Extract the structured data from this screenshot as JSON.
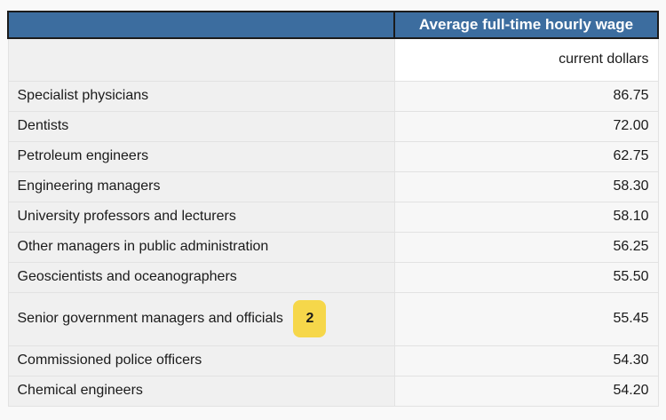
{
  "table": {
    "header_title": "Average full-time hourly wage",
    "unit_label": "current dollars",
    "rows": [
      {
        "label": "Specialist physicians",
        "value": "86.75"
      },
      {
        "label": "Dentists",
        "value": "72.00"
      },
      {
        "label": "Petroleum engineers",
        "value": "62.75"
      },
      {
        "label": "Engineering managers",
        "value": "58.30"
      },
      {
        "label": "University professors and lecturers",
        "value": "58.10"
      },
      {
        "label": "Other managers in public administration",
        "value": "56.25"
      },
      {
        "label": "Geoscientists and oceanographers",
        "value": "55.50"
      },
      {
        "label": "Senior government managers and officials",
        "value": "55.45",
        "badge": "2"
      },
      {
        "label": "Commissioned police officers",
        "value": "54.30"
      },
      {
        "label": "Chemical engineers",
        "value": "54.20"
      }
    ],
    "colors": {
      "header_bg": "#3c6d9f",
      "header_text": "#ffffff",
      "header_border": "#1b1b1b",
      "label_cell_bg": "#f0f0f0",
      "value_cell_bg": "#f7f7f7",
      "unit_cell_bg": "#ffffff",
      "row_border": "#e2e2e2",
      "badge_bg": "#f6d74a",
      "badge_text": "#1a1a1a",
      "text_color": "#1a1a1a",
      "page_bg": "#f9f9f9"
    }
  }
}
